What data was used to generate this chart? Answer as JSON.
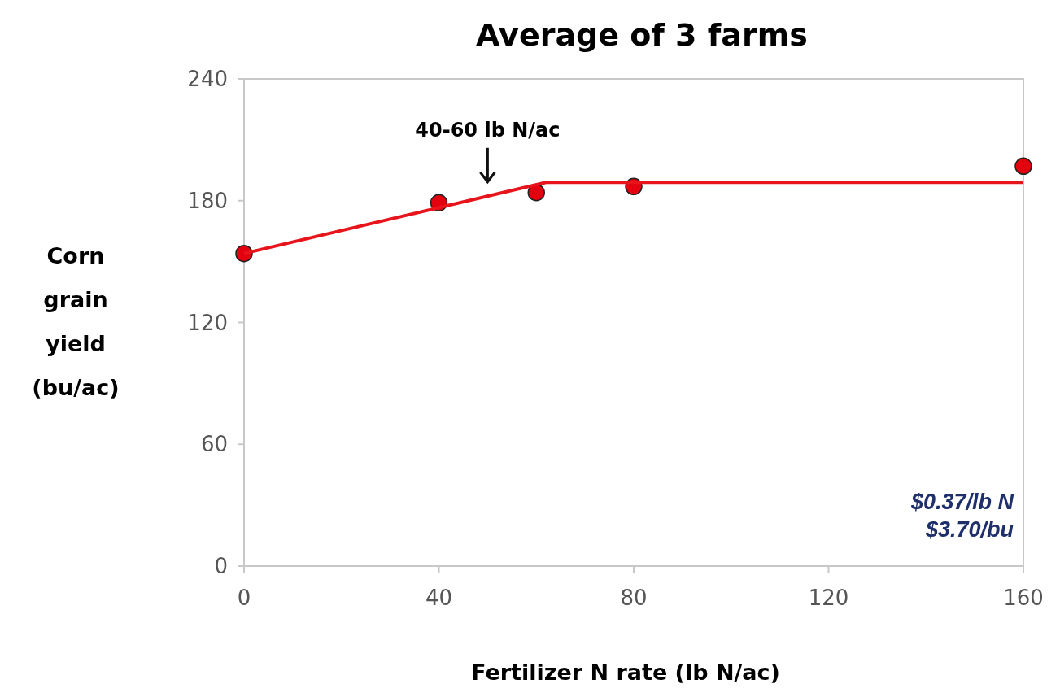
{
  "chart_data": {
    "type": "scatter",
    "title": "Average of 3 farms",
    "xlabel": "Fertilizer N rate (lb N/ac)",
    "ylabel": "Corn grain yield (bu/ac)",
    "xlim": [
      0,
      160
    ],
    "xticks": [
      0,
      40,
      80,
      120,
      160
    ],
    "ylim": [
      0,
      240
    ],
    "yticks": [
      0,
      60,
      120,
      180,
      240
    ],
    "grid": false,
    "series": [
      {
        "color": "#e3000f",
        "marker": "circle",
        "x": [
          0,
          40,
          60,
          80,
          160
        ],
        "values": [
          154,
          179,
          184,
          187,
          197
        ]
      },
      {
        "type": "line",
        "color": "#e8141b",
        "marker": "none",
        "line_style": "solid",
        "x": [
          0,
          62,
          160
        ],
        "values": [
          154,
          189,
          189
        ]
      }
    ],
    "annotations": [
      {
        "text": "40-60 lb N/ac",
        "x": 50,
        "y": 182
      },
      "$0.37/lb N",
      "$3.70/bu"
    ]
  }
}
